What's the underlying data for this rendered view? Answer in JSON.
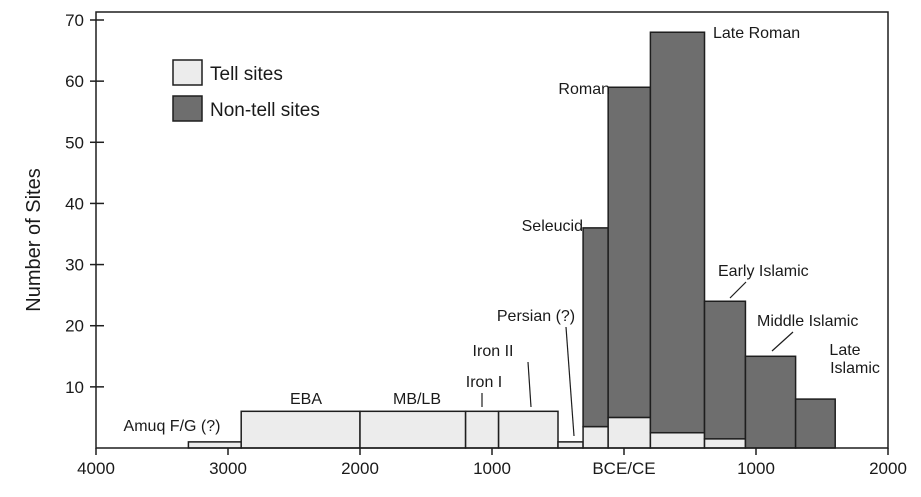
{
  "chart_data": {
    "type": "bar",
    "xlabel": "",
    "ylabel": "Number of Sites",
    "xlim": [
      -4000,
      2000
    ],
    "ylim": [
      0,
      72
    ],
    "x_axis_reversed_bce": true,
    "x_ticks": [
      {
        "value": -4000,
        "label": "4000"
      },
      {
        "value": -3000,
        "label": "3000"
      },
      {
        "value": -2000,
        "label": "2000"
      },
      {
        "value": -1000,
        "label": "1000"
      },
      {
        "value": 0,
        "label": "BCE/CE"
      },
      {
        "value": 1000,
        "label": "1000"
      },
      {
        "value": 2000,
        "label": "2000"
      }
    ],
    "y_ticks": [
      {
        "value": 10,
        "label": "10"
      },
      {
        "value": 20,
        "label": "20"
      },
      {
        "value": 30,
        "label": "30"
      },
      {
        "value": 40,
        "label": "40"
      },
      {
        "value": 50,
        "label": "50"
      },
      {
        "value": 60,
        "label": "60"
      },
      {
        "value": 70,
        "label": "70"
      }
    ],
    "legend": {
      "placement": "top-left",
      "entries": [
        {
          "key": "tell",
          "label": "Tell sites"
        },
        {
          "key": "non_tell",
          "label": "Non-tell sites"
        }
      ]
    },
    "colors": {
      "tell": "#ececec",
      "non_tell": "#6e6e6e",
      "outline": "#1e1e1e"
    },
    "periods": [
      {
        "name": "Amuq F/G (?)",
        "start": -3300,
        "end": -2900,
        "tell": 1,
        "non_tell": 0
      },
      {
        "name": "EBA",
        "start": -2900,
        "end": -2000,
        "tell": 6,
        "non_tell": 0
      },
      {
        "name": "MB/LB",
        "start": -2000,
        "end": -1200,
        "tell": 6,
        "non_tell": 0
      },
      {
        "name": "Iron I",
        "start": -1200,
        "end": -950,
        "tell": 6,
        "non_tell": 0
      },
      {
        "name": "Iron II",
        "start": -950,
        "end": -500,
        "tell": 6,
        "non_tell": 0
      },
      {
        "name": "Persian (?)",
        "start": -500,
        "end": -310,
        "tell": 1,
        "non_tell": 0
      },
      {
        "name": "Seleucid",
        "start": -310,
        "end": -120,
        "tell": 3.5,
        "non_tell": 32.5
      },
      {
        "name": "Roman",
        "start": -120,
        "end": 200,
        "tell": 5,
        "non_tell": 54
      },
      {
        "name": "Late Roman",
        "start": 200,
        "end": 610,
        "tell": 2.5,
        "non_tell": 65.5
      },
      {
        "name": "Early Islamic",
        "start": 610,
        "end": 920,
        "tell": 1.5,
        "non_tell": 22.5
      },
      {
        "name": "Middle Islamic",
        "start": 920,
        "end": 1300,
        "tell": 0,
        "non_tell": 15
      },
      {
        "name": "Late Islamic",
        "start": 1300,
        "end": 1600,
        "tell": 0,
        "non_tell": 8
      }
    ],
    "grid": false
  }
}
